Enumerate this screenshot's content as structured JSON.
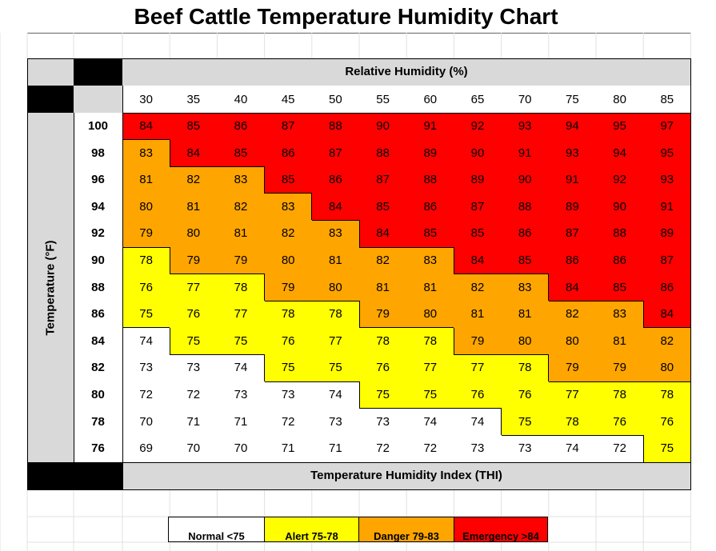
{
  "page": {
    "title": "Beef Cattle Temperature Humidity Chart"
  },
  "colors": {
    "normal": "#ffffff",
    "alert": "#ffff00",
    "danger": "#ffa500",
    "emergency": "#ff0000",
    "header_gray": "#d9d9d9"
  },
  "chart_data": {
    "type": "heatmap",
    "title": "Beef Cattle Temperature Humidity Chart",
    "xlabel": "Relative Humidity (%)",
    "ylabel": "Temperature (°F)",
    "value_label": "Temperature Humidity Index (THI)",
    "x": [
      30,
      35,
      40,
      45,
      50,
      55,
      60,
      65,
      70,
      75,
      80,
      85
    ],
    "y": [
      100,
      98,
      96,
      94,
      92,
      90,
      88,
      86,
      84,
      82,
      80,
      78,
      76
    ],
    "values": [
      [
        84,
        85,
        86,
        87,
        88,
        90,
        91,
        92,
        93,
        94,
        95,
        97
      ],
      [
        83,
        84,
        85,
        86,
        87,
        88,
        89,
        90,
        91,
        93,
        94,
        95
      ],
      [
        81,
        82,
        83,
        85,
        86,
        87,
        88,
        89,
        90,
        91,
        92,
        93
      ],
      [
        80,
        81,
        82,
        83,
        84,
        85,
        86,
        87,
        88,
        89,
        90,
        91
      ],
      [
        79,
        80,
        81,
        82,
        83,
        84,
        85,
        85,
        86,
        87,
        88,
        89
      ],
      [
        78,
        79,
        79,
        80,
        81,
        82,
        83,
        84,
        85,
        86,
        86,
        87
      ],
      [
        76,
        77,
        78,
        79,
        80,
        81,
        81,
        82,
        83,
        84,
        85,
        86
      ],
      [
        75,
        76,
        77,
        78,
        78,
        79,
        80,
        81,
        81,
        82,
        83,
        84
      ],
      [
        74,
        75,
        75,
        76,
        77,
        78,
        78,
        79,
        80,
        80,
        81,
        82
      ],
      [
        73,
        73,
        74,
        75,
        75,
        76,
        77,
        77,
        78,
        79,
        79,
        80
      ],
      [
        72,
        72,
        73,
        73,
        74,
        75,
        75,
        76,
        76,
        77,
        78,
        78
      ],
      [
        70,
        71,
        71,
        72,
        73,
        73,
        74,
        74,
        75,
        78,
        76,
        76
      ],
      [
        69,
        70,
        70,
        71,
        71,
        72,
        72,
        73,
        73,
        74,
        72,
        75
      ]
    ],
    "categories_cells": [
      [
        "E",
        "E",
        "E",
        "E",
        "E",
        "E",
        "E",
        "E",
        "E",
        "E",
        "E",
        "E"
      ],
      [
        "D",
        "E",
        "E",
        "E",
        "E",
        "E",
        "E",
        "E",
        "E",
        "E",
        "E",
        "E"
      ],
      [
        "D",
        "D",
        "D",
        "E",
        "E",
        "E",
        "E",
        "E",
        "E",
        "E",
        "E",
        "E"
      ],
      [
        "D",
        "D",
        "D",
        "D",
        "E",
        "E",
        "E",
        "E",
        "E",
        "E",
        "E",
        "E"
      ],
      [
        "D",
        "D",
        "D",
        "D",
        "D",
        "E",
        "E",
        "E",
        "E",
        "E",
        "E",
        "E"
      ],
      [
        "A",
        "D",
        "D",
        "D",
        "D",
        "D",
        "D",
        "E",
        "E",
        "E",
        "E",
        "E"
      ],
      [
        "A",
        "A",
        "A",
        "D",
        "D",
        "D",
        "D",
        "D",
        "D",
        "E",
        "E",
        "E"
      ],
      [
        "A",
        "A",
        "A",
        "A",
        "A",
        "D",
        "D",
        "D",
        "D",
        "D",
        "D",
        "E"
      ],
      [
        "N",
        "A",
        "A",
        "A",
        "A",
        "A",
        "A",
        "D",
        "D",
        "D",
        "D",
        "D"
      ],
      [
        "N",
        "N",
        "N",
        "A",
        "A",
        "A",
        "A",
        "A",
        "A",
        "D",
        "D",
        "D"
      ],
      [
        "N",
        "N",
        "N",
        "N",
        "N",
        "A",
        "A",
        "A",
        "A",
        "A",
        "A",
        "A"
      ],
      [
        "N",
        "N",
        "N",
        "N",
        "N",
        "N",
        "N",
        "N",
        "A",
        "A",
        "A",
        "A"
      ],
      [
        "N",
        "N",
        "N",
        "N",
        "N",
        "N",
        "N",
        "N",
        "N",
        "N",
        "N",
        "A"
      ]
    ],
    "legend": [
      {
        "key": "N",
        "label": "Normal <75"
      },
      {
        "key": "A",
        "label": "Alert 75-78"
      },
      {
        "key": "D",
        "label": "Danger 79-83"
      },
      {
        "key": "E",
        "label": "Emergency >84"
      }
    ]
  }
}
